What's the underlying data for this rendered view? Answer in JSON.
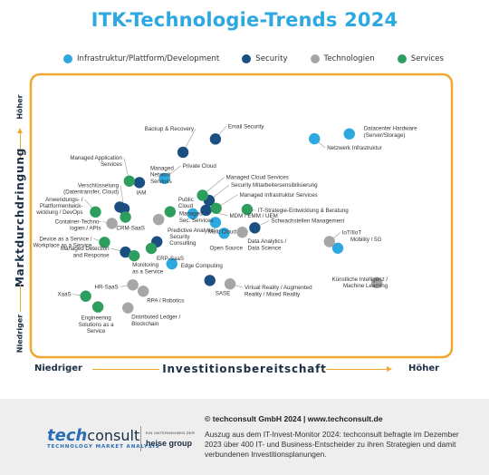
{
  "title": "ITK-Technologie-Trends 2024",
  "legend": [
    {
      "label": "Infrastruktur/Plattform/Development",
      "color": "#2ea8e0"
    },
    {
      "label": "Security",
      "color": "#1b4f82"
    },
    {
      "label": "Technologien",
      "color": "#a6a6a6"
    },
    {
      "label": "Services",
      "color": "#2e9e5e"
    }
  ],
  "axes": {
    "y_title": "Marktdurchdringung",
    "y_low": "Niedriger",
    "y_high": "Höher",
    "x_title": "Investitionsbereitschaft",
    "x_low": "Niedriger",
    "x_high": "Höher"
  },
  "footer": {
    "logo_tech": "tech",
    "logo_consult": "consult",
    "logo_tagline": "TECHNOLOGY MARKET ANALYSIS",
    "heise_small": "EIN UNTERNEHMEN DER",
    "heise_name": "heise group",
    "copyright": "© techconsult GmbH 2024  |  www.techconsult.de",
    "description": "Auszug aus dem IT-Invest-Monitor 2024: techconsult befragte im Dezember 2023 über 400 IT- und Business-Entscheider zu ihren Strategien und damit verbundenen Investitionsplanungen."
  },
  "chart_data": {
    "type": "scatter",
    "title": "ITK-Technologie-Trends 2024",
    "xlabel": "Investitionsbereitschaft",
    "ylabel": "Marktdurchdringung",
    "x_range": [
      "Niedriger",
      "Höher"
    ],
    "y_range": [
      "Niedriger",
      "Höher"
    ],
    "series": [
      {
        "name": "Infrastruktur/Plattform/Development",
        "color": "#2ea8e0",
        "points": [
          {
            "label": "Datacenter Hardware (Server/Storage)",
            "x": 0.898,
            "y": 0.853
          },
          {
            "label": "Netzwerk Infrastruktur",
            "x": 0.798,
            "y": 0.833
          },
          {
            "label": "Private Cloud",
            "x": 0.368,
            "y": 0.671
          },
          {
            "label": "Public Cloud",
            "x": 0.449,
            "y": 0.526
          },
          {
            "label": "Multi Cloud",
            "x": 0.514,
            "y": 0.491
          },
          {
            "label": "Open Source",
            "x": 0.539,
            "y": 0.447
          },
          {
            "label": "Mobility / 5G",
            "x": 0.865,
            "y": 0.386
          },
          {
            "label": "Edge Computing",
            "x": 0.389,
            "y": 0.322
          }
        ]
      },
      {
        "name": "Security",
        "color": "#1b4f82",
        "points": [
          {
            "label": "Email Security",
            "x": 0.514,
            "y": 0.832
          },
          {
            "label": "Backup & Recovery",
            "x": 0.421,
            "y": 0.778
          },
          {
            "label": "Managed Network Services",
            "x": 0.296,
            "y": 0.654
          },
          {
            "label": "Security Mitarbeitersensibilisierung",
            "x": 0.496,
            "y": 0.581
          },
          {
            "label": "IAM",
            "x": 0.24,
            "y": 0.554
          },
          {
            "label": "Verschlüsselung (Datentransfer, Cloud)",
            "x": 0.252,
            "y": 0.547
          },
          {
            "label": "MDM / EMM / UEM",
            "x": 0.487,
            "y": 0.541
          },
          {
            "label": "Schwachstellen Management",
            "x": 0.627,
            "y": 0.469
          },
          {
            "label": "Security Consulting",
            "x": 0.346,
            "y": 0.412
          },
          {
            "label": "Managed Detection and Response",
            "x": 0.256,
            "y": 0.37
          },
          {
            "label": "SASE",
            "x": 0.498,
            "y": 0.254
          }
        ]
      },
      {
        "name": "Technologien",
        "color": "#a6a6a6",
        "points": [
          {
            "label": "Container-Technologien / APIs",
            "x": 0.217,
            "y": 0.487
          },
          {
            "label": "Predictive Analytics",
            "x": 0.351,
            "y": 0.503
          },
          {
            "label": "Data Analytics / Data Science",
            "x": 0.591,
            "y": 0.451
          },
          {
            "label": "IoT/IIoT",
            "x": 0.841,
            "y": 0.413
          },
          {
            "label": "Künstliche Intelligenz / Machine Learning",
            "x": 0.977,
            "y": 0.245
          },
          {
            "label": "Virtual Reality / Augmented Reality / Mixed Reality",
            "x": 0.556,
            "y": 0.24
          },
          {
            "label": "HR-SaaS",
            "x": 0.277,
            "y": 0.236
          },
          {
            "label": "RPA / Robotics",
            "x": 0.307,
            "y": 0.21
          },
          {
            "label": "Distributed Ledger / Blockchain",
            "x": 0.263,
            "y": 0.142
          }
        ]
      },
      {
        "name": "Services",
        "color": "#2e9e5e",
        "points": [
          {
            "label": "Managed Application Services",
            "x": 0.267,
            "y": 0.66
          },
          {
            "label": "Managed Cloud Services",
            "x": 0.477,
            "y": 0.602
          },
          {
            "label": "Managed Infrastruktur Services",
            "x": 0.516,
            "y": 0.549
          },
          {
            "label": "IT-Strategie-Entwicklung & Beratung",
            "x": 0.605,
            "y": 0.544
          },
          {
            "label": "Anwendungs- / Plattformentwicklung / DevOps",
            "x": 0.17,
            "y": 0.534
          },
          {
            "label": "CRM-SaaS",
            "x": 0.256,
            "y": 0.513
          },
          {
            "label": "Managed Sec. Services",
            "x": 0.384,
            "y": 0.535
          },
          {
            "label": "Device as a Service / Workplace as a Service",
            "x": 0.196,
            "y": 0.41
          },
          {
            "label": "ERP-SaaS",
            "x": 0.33,
            "y": 0.385
          },
          {
            "label": "Monitoring as a Service",
            "x": 0.281,
            "y": 0.355
          },
          {
            "label": "XaaS",
            "x": 0.142,
            "y": 0.19
          },
          {
            "label": "Engineering Solutions as a Service",
            "x": 0.177,
            "y": 0.146
          }
        ]
      }
    ]
  }
}
